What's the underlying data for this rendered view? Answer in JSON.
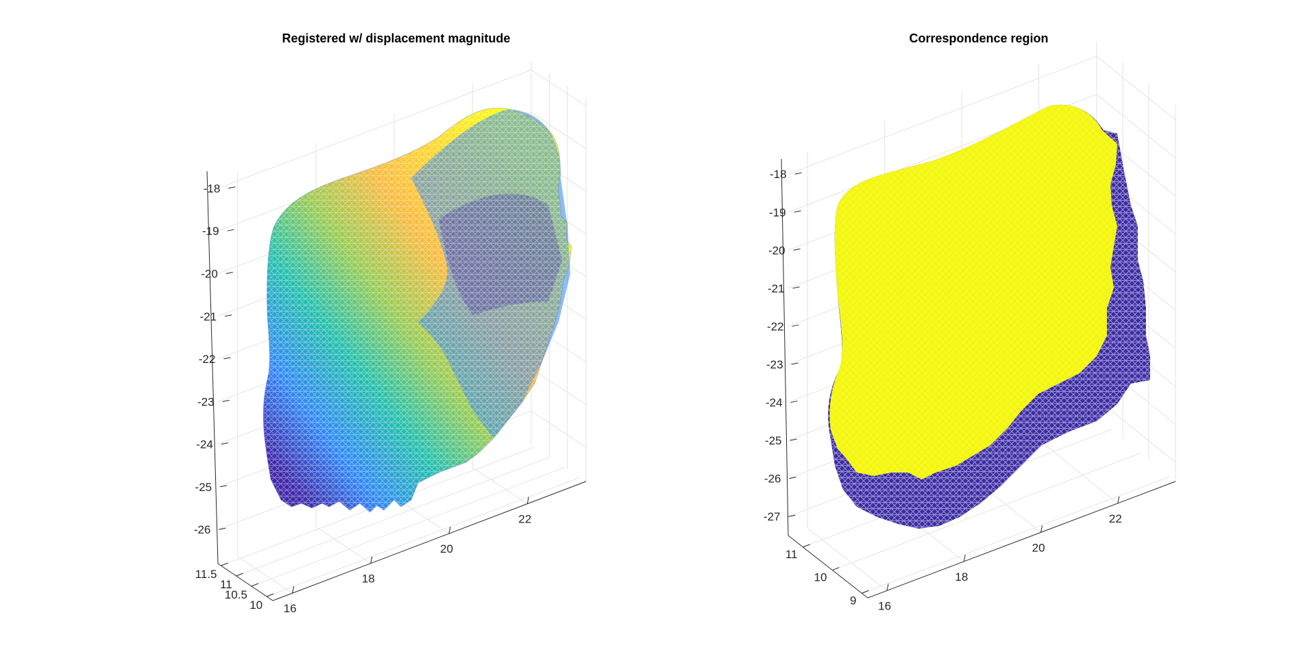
{
  "chart_data": [
    {
      "type": "surface-mesh-3d",
      "title": "Registered w/ displacement magnitude",
      "xlabel": "",
      "ylabel": "",
      "zlabel": "",
      "x_ticks": [
        "16",
        "18",
        "20",
        "22"
      ],
      "y_ticks": [
        "10",
        "10.5",
        "11",
        "11.5"
      ],
      "z_ticks": [
        "-26",
        "-25",
        "-24",
        "-23",
        "-22",
        "-21",
        "-20",
        "-19",
        "-18"
      ],
      "xlim": [
        15.5,
        23.5
      ],
      "ylim": [
        9.8,
        11.6
      ],
      "zlim": [
        -26.8,
        -17.6
      ],
      "grid": true,
      "colormap": "parula",
      "colors": [
        "#3e26a8",
        "#2e87f7",
        "#21bfac",
        "#96cb52",
        "#fbba3c",
        "#f9fb0e"
      ]
    },
    {
      "type": "surface-mesh-3d",
      "title": "Correspondence region",
      "xlabel": "",
      "ylabel": "",
      "zlabel": "",
      "x_ticks": [
        "16",
        "18",
        "20",
        "22"
      ],
      "y_ticks": [
        "9",
        "10",
        "11"
      ],
      "z_ticks": [
        "-27",
        "-26",
        "-25",
        "-24",
        "-23",
        "-22",
        "-21",
        "-20",
        "-19",
        "-18"
      ],
      "xlim": [
        15.5,
        23.5
      ],
      "ylim": [
        8.8,
        11.5
      ],
      "zlim": [
        -27.5,
        -17.6
      ],
      "grid": true,
      "colors": [
        "#f6f91c",
        "#3a2aa3"
      ]
    }
  ]
}
